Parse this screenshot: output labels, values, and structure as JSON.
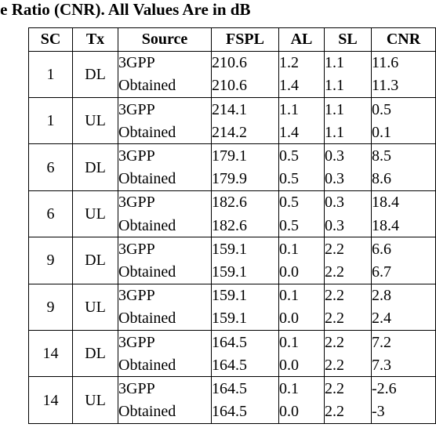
{
  "caption": "se Ratio (CNR). All Values Are in dB",
  "table": {
    "headers": [
      "SC",
      "Tx",
      "Source",
      "FSPL",
      "AL",
      "SL",
      "CNR"
    ],
    "groups": [
      {
        "sc": "1",
        "tx": "DL",
        "rows": [
          {
            "source": "3GPP",
            "fspl": "210.6",
            "al": "1.2",
            "sl": "1.1",
            "cnr": "11.6"
          },
          {
            "source": "Obtained",
            "fspl": "210.6",
            "al": "1.4",
            "sl": "1.1",
            "cnr": "11.3"
          }
        ]
      },
      {
        "sc": "1",
        "tx": "UL",
        "rows": [
          {
            "source": "3GPP",
            "fspl": "214.1",
            "al": "1.1",
            "sl": "1.1",
            "cnr": "0.5"
          },
          {
            "source": "Obtained",
            "fspl": "214.2",
            "al": "1.4",
            "sl": "1.1",
            "cnr": "0.1"
          }
        ]
      },
      {
        "sc": "6",
        "tx": "DL",
        "rows": [
          {
            "source": "3GPP",
            "fspl": "179.1",
            "al": "0.5",
            "sl": "0.3",
            "cnr": "8.5"
          },
          {
            "source": "Obtained",
            "fspl": "179.9",
            "al": "0.5",
            "sl": "0.3",
            "cnr": "8.6"
          }
        ]
      },
      {
        "sc": "6",
        "tx": "UL",
        "rows": [
          {
            "source": "3GPP",
            "fspl": "182.6",
            "al": "0.5",
            "sl": "0.3",
            "cnr": "18.4"
          },
          {
            "source": "Obtained",
            "fspl": "182.6",
            "al": "0.5",
            "sl": "0.3",
            "cnr": "18.4"
          }
        ]
      },
      {
        "sc": "9",
        "tx": "DL",
        "rows": [
          {
            "source": "3GPP",
            "fspl": "159.1",
            "al": "0.1",
            "sl": "2.2",
            "cnr": "6.6"
          },
          {
            "source": "Obtained",
            "fspl": "159.1",
            "al": "0.0",
            "sl": "2.2",
            "cnr": "6.7"
          }
        ]
      },
      {
        "sc": "9",
        "tx": "UL",
        "rows": [
          {
            "source": "3GPP",
            "fspl": "159.1",
            "al": "0.1",
            "sl": "2.2",
            "cnr": "2.8"
          },
          {
            "source": "Obtained",
            "fspl": "159.1",
            "al": "0.0",
            "sl": "2.2",
            "cnr": "2.4"
          }
        ]
      },
      {
        "sc": "14",
        "tx": "DL",
        "rows": [
          {
            "source": "3GPP",
            "fspl": "164.5",
            "al": "0.1",
            "sl": "2.2",
            "cnr": "7.2"
          },
          {
            "source": "Obtained",
            "fspl": "164.5",
            "al": "0.0",
            "sl": "2.2",
            "cnr": "7.3"
          }
        ]
      },
      {
        "sc": "14",
        "tx": "UL",
        "rows": [
          {
            "source": "3GPP",
            "fspl": "164.5",
            "al": "0.1",
            "sl": "2.2",
            "cnr": "-2.6"
          },
          {
            "source": "Obtained",
            "fspl": "164.5",
            "al": "0.0",
            "sl": "2.2",
            "cnr": "-3"
          }
        ]
      }
    ]
  }
}
